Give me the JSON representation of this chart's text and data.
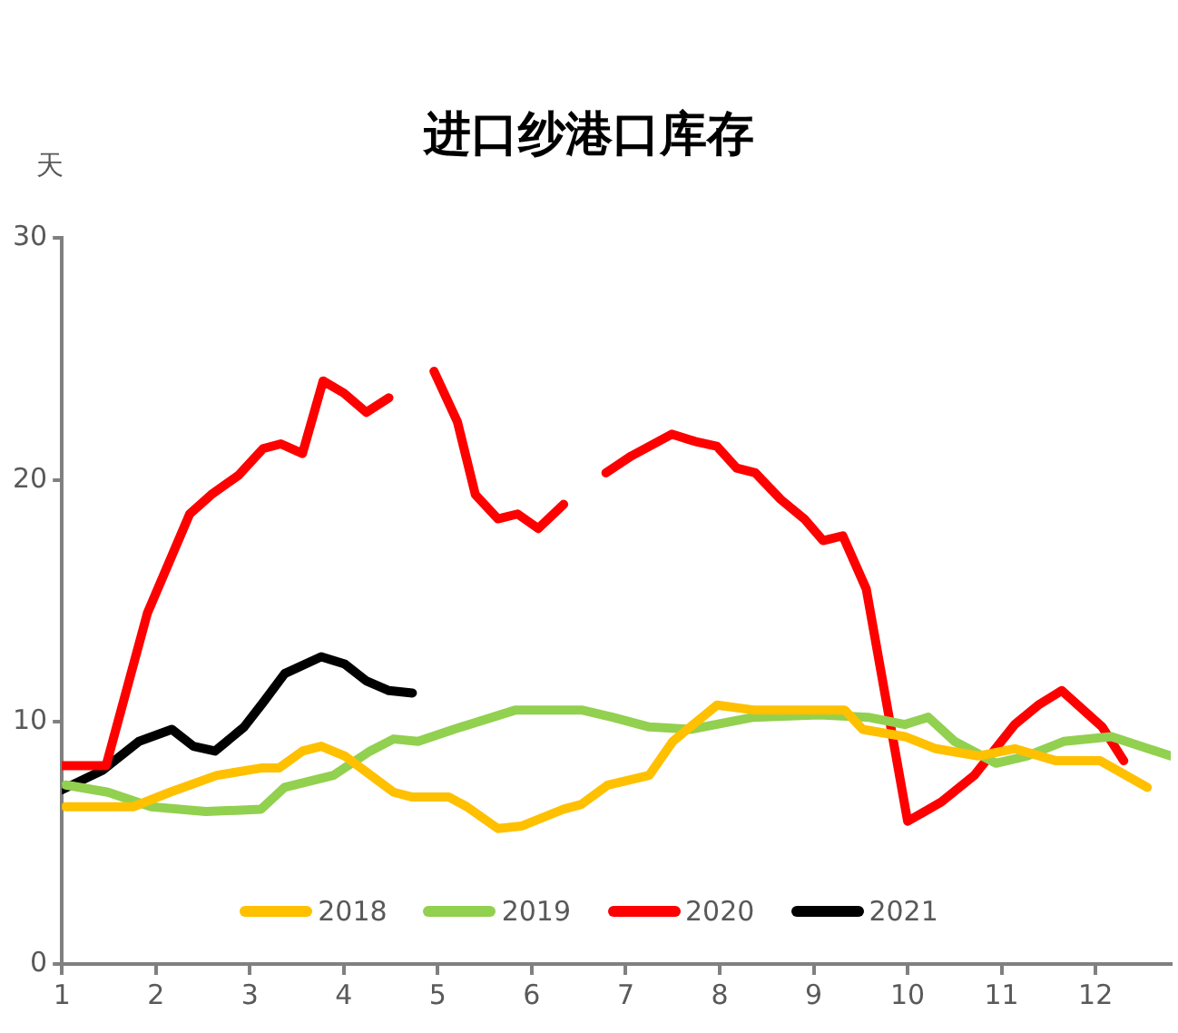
{
  "chart_data": {
    "type": "line",
    "title": "进口纱港口库存",
    "ylabel": "天",
    "xlim": [
      1,
      12.8
    ],
    "xticks": [
      1,
      2,
      3,
      4,
      5,
      6,
      7,
      8,
      9,
      10,
      11,
      12
    ],
    "ylim": [
      0,
      30
    ],
    "yticks": [
      0,
      10,
      20,
      30
    ],
    "grid": false,
    "legend": "bottom",
    "marker": "none",
    "line_style": "solid",
    "series": [
      {
        "name": "2018",
        "color": "#ffc000",
        "x": [
          1.04,
          1.76,
          2.15,
          2.65,
          3.12,
          3.31,
          3.56,
          3.76,
          4.01,
          4.53,
          4.73,
          5.12,
          5.31,
          5.64,
          5.89,
          6.34,
          6.53,
          6.81,
          7.25,
          7.5,
          7.97,
          8.36,
          9.33,
          9.52,
          9.97,
          10.3,
          10.75,
          11.14,
          11.58,
          12.05,
          12.55
        ],
        "values": [
          6.5,
          6.5,
          7.1,
          7.8,
          8.1,
          8.1,
          8.8,
          9.0,
          8.6,
          7.1,
          6.9,
          6.9,
          6.5,
          5.6,
          5.7,
          6.4,
          6.6,
          7.4,
          7.8,
          9.2,
          10.7,
          10.5,
          10.5,
          9.7,
          9.4,
          8.9,
          8.6,
          8.9,
          8.4,
          8.4,
          7.3
        ]
      },
      {
        "name": "2019",
        "color": "#92d050",
        "x": [
          1.04,
          1.49,
          1.95,
          2.53,
          3.12,
          3.37,
          3.89,
          4.28,
          4.53,
          4.79,
          5.17,
          5.83,
          6.53,
          6.86,
          7.25,
          7.7,
          8.36,
          9.06,
          9.58,
          9.97,
          10.22,
          10.5,
          10.94,
          11.27,
          11.66,
          12.17,
          12.8
        ],
        "values": [
          7.4,
          7.1,
          6.5,
          6.3,
          6.4,
          7.3,
          7.8,
          8.8,
          9.3,
          9.2,
          9.7,
          10.5,
          10.5,
          10.2,
          9.8,
          9.7,
          10.2,
          10.3,
          10.2,
          9.9,
          10.2,
          9.2,
          8.3,
          8.6,
          9.2,
          9.4,
          8.6
        ]
      },
      {
        "name": "2020",
        "color": "#ff0000",
        "x": [
          1.0,
          1.47,
          1.91,
          2.36,
          2.59,
          2.88,
          3.14,
          3.33,
          3.56,
          3.78,
          4.0,
          4.24,
          4.48,
          4.72,
          4.96,
          5.21,
          5.4,
          5.64,
          5.85,
          6.07,
          6.34,
          6.56,
          6.79,
          7.06,
          7.49,
          7.74,
          7.97,
          8.18,
          8.38,
          8.65,
          8.9,
          9.1,
          9.31,
          9.56,
          10.0,
          10.36,
          10.71,
          11.14,
          11.39,
          11.64,
          12.07,
          12.3
        ],
        "values": [
          8.2,
          8.2,
          14.5,
          18.6,
          19.4,
          20.2,
          21.3,
          21.5,
          21.1,
          24.1,
          23.6,
          22.8,
          23.4,
          null,
          24.5,
          22.4,
          19.4,
          18.4,
          18.6,
          18.0,
          19.0,
          null,
          20.3,
          21.0,
          21.9,
          21.6,
          21.4,
          20.5,
          20.3,
          19.2,
          18.4,
          17.5,
          17.7,
          15.5,
          5.9,
          6.7,
          7.8,
          9.9,
          10.7,
          11.3,
          9.8,
          8.4
        ]
      },
      {
        "name": "2021",
        "color": "#000000",
        "x": [
          1.0,
          1.43,
          1.82,
          2.17,
          2.4,
          2.63,
          2.94,
          3.14,
          3.37,
          3.76,
          4.01,
          4.24,
          4.48,
          4.73
        ],
        "values": [
          7.2,
          8.0,
          9.2,
          9.7,
          9.0,
          8.8,
          9.8,
          10.8,
          12.0,
          12.7,
          12.4,
          11.7,
          11.3,
          11.2
        ]
      }
    ]
  }
}
